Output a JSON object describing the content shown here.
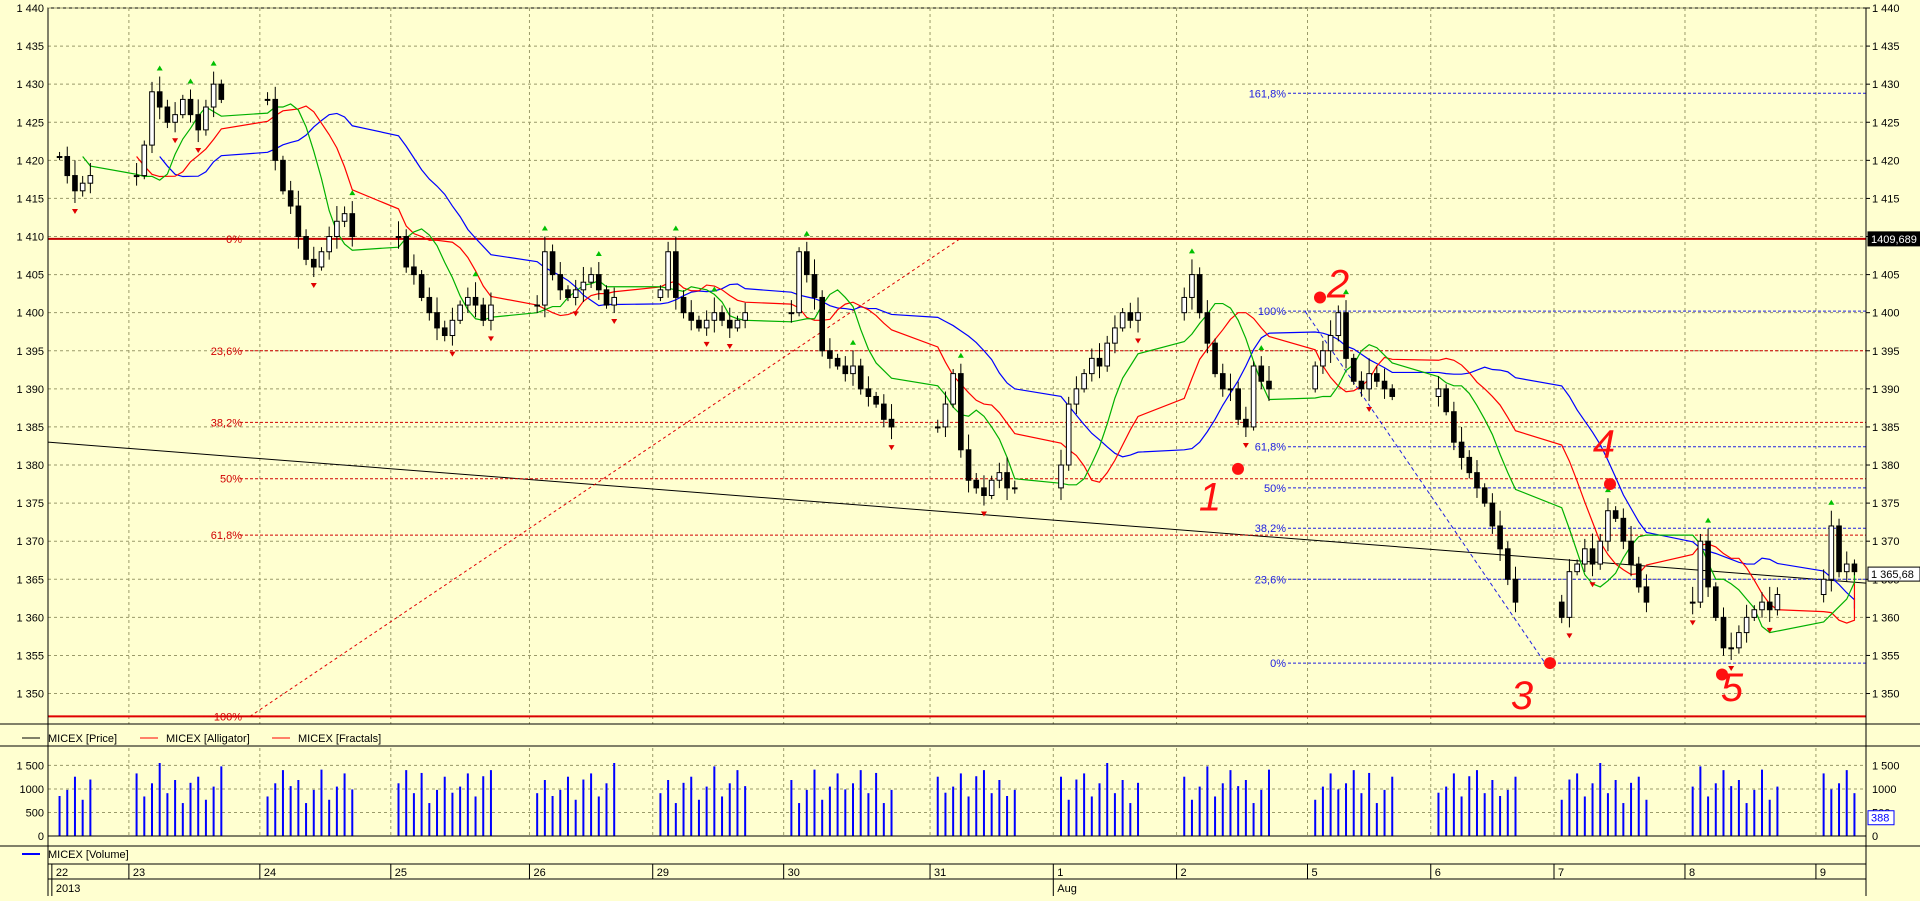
{
  "window": {
    "legend_price": [
      "MICEX [Price]",
      "MICEX [Alligator]",
      "MICEX [Fractals]"
    ],
    "legend_volume": "MICEX [Volume]",
    "colors": {
      "background": "#ffffd0",
      "grid": "#9a9a6a",
      "bull": "#ffffff",
      "bear": "#000000",
      "jaw": "#0000ff",
      "teeth": "#ff0000",
      "lips": "#00b000",
      "fractal_up": "#00c000",
      "fractal_down": "#e00000",
      "volume": "#0000ff",
      "annotation": "#ff1010"
    }
  },
  "chart_data": [
    {
      "type": "candlestick",
      "series_name": "MICEX [Price]",
      "ylim": [
        1346,
        1440
      ],
      "yticks": [
        1350,
        1355,
        1360,
        1365,
        1370,
        1375,
        1380,
        1385,
        1390,
        1395,
        1400,
        1405,
        1410,
        1415,
        1420,
        1425,
        1430,
        1435,
        1440
      ],
      "ytick_labels": [
        "1 350",
        "1 355",
        "1 360",
        "1 365",
        "1 370",
        "1 375",
        "1 380",
        "1 385",
        "1 390",
        "1 395",
        "1 400",
        "1 405",
        "1 410",
        "1 415",
        "1 420",
        "1 425",
        "1 430",
        "1 435",
        "1 440"
      ],
      "last_price_label": "1 365,68",
      "resistance_label": "1409,689",
      "sessions": [
        {
          "label": "22",
          "points": [
            1420.5,
            1418,
            1416,
            1417,
            1418
          ]
        },
        {
          "label": "23",
          "points": [
            1418,
            1422,
            1429,
            1427,
            1425,
            1426,
            1428,
            1426,
            1424,
            1427,
            1430,
            1428
          ]
        },
        {
          "label": "24",
          "points": [
            1428,
            1420,
            1416,
            1414,
            1410,
            1407,
            1406,
            1408,
            1410,
            1412,
            1413,
            1410
          ]
        },
        {
          "label": "25",
          "points": [
            1410,
            1406,
            1405,
            1402,
            1400,
            1398,
            1397,
            1399,
            1401,
            1402,
            1401,
            1399,
            1401
          ]
        },
        {
          "label": "26",
          "points": [
            1401,
            1408,
            1405,
            1403,
            1402,
            1403,
            1404,
            1405,
            1403,
            1401,
            1402
          ]
        },
        {
          "label": "29",
          "points": [
            1403,
            1408,
            1402,
            1400,
            1399,
            1398,
            1399,
            1400,
            1399,
            1398,
            1399,
            1400
          ]
        },
        {
          "label": "30",
          "points": [
            1400,
            1408,
            1405,
            1402,
            1395,
            1394,
            1393,
            1392,
            1393,
            1390,
            1389,
            1388,
            1386,
            1385
          ]
        },
        {
          "label": "31",
          "points": [
            1385,
            1388,
            1392,
            1382,
            1378,
            1377,
            1376,
            1378,
            1379,
            1377,
            1377
          ]
        },
        {
          "label": "1",
          "points": [
            1380,
            1388,
            1390,
            1392,
            1394,
            1393,
            1396,
            1398,
            1400,
            1399,
            1400
          ]
        },
        {
          "label": "2",
          "points": [
            1402,
            1405,
            1400,
            1396,
            1392,
            1390,
            1390,
            1386,
            1385,
            1393,
            1391,
            1390
          ]
        },
        {
          "label": "5",
          "points": [
            1393,
            1395,
            1397,
            1400,
            1394,
            1391,
            1390,
            1392,
            1391,
            1390,
            1389
          ]
        },
        {
          "label": "6",
          "points": [
            1390,
            1387,
            1383,
            1381,
            1379,
            1377,
            1375,
            1372,
            1369,
            1365,
            1362
          ]
        },
        {
          "label": "7",
          "points": [
            1360,
            1366,
            1367,
            1369,
            1367,
            1370,
            1374,
            1373,
            1370,
            1367,
            1364,
            1362
          ]
        },
        {
          "label": "8",
          "points": [
            1362,
            1370,
            1364,
            1360,
            1356,
            1356,
            1358,
            1360,
            1361,
            1362,
            1361,
            1363
          ]
        },
        {
          "label": "9",
          "points": [
            1365,
            1372,
            1366,
            1367,
            1366
          ]
        }
      ],
      "x_labels": [
        "22",
        "23",
        "24",
        "25",
        "26",
        "29",
        "30",
        "31",
        "1",
        "2",
        "5",
        "6",
        "7",
        "8",
        "9"
      ],
      "x_sublabels": {
        "year": "2013",
        "month": "Aug"
      },
      "indicators": [
        "Alligator (jaw, teeth, lips)",
        "Fractals"
      ],
      "horizontal_levels": [
        {
          "value": 1409.689,
          "label": "1409,689",
          "color": "#c00000"
        },
        {
          "value": 1347,
          "color": "#e00000"
        }
      ],
      "fibonacci_red": {
        "levels": [
          {
            "label": "0%",
            "value": 1409.7
          },
          {
            "label": "23,6%",
            "value": 1395
          },
          {
            "label": "38,2%",
            "value": 1385.6
          },
          {
            "label": "50%",
            "value": 1378.2
          },
          {
            "label": "61,8%",
            "value": 1370.8
          },
          {
            "label": "100%",
            "value": 1347
          }
        ]
      },
      "fibonacci_blue": {
        "levels": [
          {
            "label": "161,8%",
            "value": 1428.8
          },
          {
            "label": "100%",
            "value": 1400.2
          },
          {
            "label": "61,8%",
            "value": 1382.4
          },
          {
            "label": "50%",
            "value": 1377
          },
          {
            "label": "38,2%",
            "value": 1371.7
          },
          {
            "label": "23,6%",
            "value": 1365
          },
          {
            "label": "0%",
            "value": 1354
          }
        ]
      },
      "annotations": [
        "1",
        "2",
        "3",
        "4",
        "5"
      ]
    },
    {
      "type": "bar",
      "series_name": "MICEX [Volume]",
      "ylim": [
        0,
        1700
      ],
      "yticks": [
        0,
        500,
        1000,
        1500
      ],
      "ytick_labels": [
        "0",
        "500",
        "1000",
        "1 500"
      ],
      "last_value_label": "388"
    }
  ]
}
